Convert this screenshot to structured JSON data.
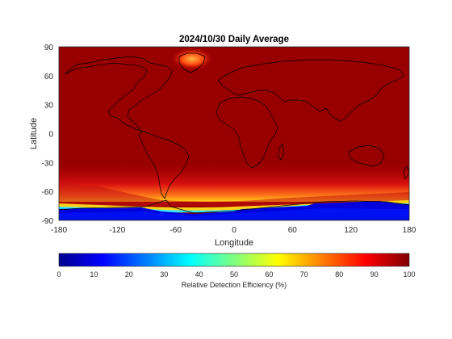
{
  "chart_data": {
    "type": "heatmap",
    "title": "2024/10/30 Daily Average",
    "xlabel": "Longitude",
    "ylabel": "Latitude",
    "xlim": [
      -180,
      180
    ],
    "ylim": [
      -90,
      90
    ],
    "xticks": [
      "-180",
      "-120",
      "-60",
      "0",
      "60",
      "120",
      "180"
    ],
    "yticks": [
      "90",
      "60",
      "30",
      "0",
      "-30",
      "-60",
      "-90"
    ],
    "colorbar": {
      "label": "Relative Detection Efficiency (%)",
      "range": [
        0,
        100
      ],
      "ticks": [
        "0",
        "10",
        "20",
        "30",
        "40",
        "50",
        "60",
        "70",
        "80",
        "90",
        "100"
      ],
      "colormap": "jet",
      "placement": "bottom"
    },
    "field_summary": {
      "typical_value": 97,
      "antarctic_edge_lat_range": [
        -85,
        -65
      ],
      "antarctic_value": 5,
      "high_latitude_south_value_range": [
        75,
        92
      ],
      "greenland_value": 80
    },
    "grid": false
  }
}
